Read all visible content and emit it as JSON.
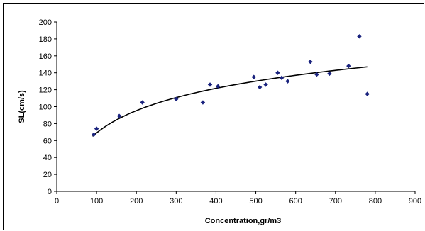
{
  "chart_data": {
    "type": "scatter",
    "title": "",
    "xlabel": "Concentration,gr/m3",
    "ylabel": "SL(cm/s)",
    "xlim": [
      0,
      900
    ],
    "ylim": [
      0,
      200
    ],
    "x_ticks": [
      0,
      100,
      200,
      300,
      400,
      500,
      600,
      700,
      800,
      900
    ],
    "y_ticks": [
      0,
      20,
      40,
      60,
      80,
      100,
      120,
      140,
      160,
      180,
      200
    ],
    "x_tick_labels": [
      "0",
      "100",
      "200",
      "300",
      "400",
      "500",
      "600",
      "700",
      "800",
      "900"
    ],
    "y_tick_labels": [
      "0",
      "20",
      "40",
      "60",
      "80",
      "100",
      "120",
      "140",
      "160",
      "180",
      "200"
    ],
    "grid": false,
    "legend": "none",
    "series": [
      {
        "values": [
          [
            93,
            67
          ],
          [
            100,
            74
          ],
          [
            157,
            89
          ],
          [
            215,
            105
          ],
          [
            300,
            109
          ],
          [
            367,
            105
          ],
          [
            385,
            126
          ],
          [
            405,
            124
          ],
          [
            495,
            135
          ],
          [
            510,
            123
          ],
          [
            525,
            126
          ],
          [
            555,
            140
          ],
          [
            565,
            134
          ],
          [
            580,
            130
          ],
          [
            637,
            153
          ],
          [
            653,
            138
          ],
          [
            685,
            139
          ],
          [
            733,
            148
          ],
          [
            760,
            183
          ],
          [
            780,
            115
          ]
        ],
        "color": "#1a237e"
      }
    ],
    "trendline": {
      "type": "logarithmic",
      "x_range": [
        90,
        780
      ],
      "anchors": [
        [
          90,
          65
        ],
        [
          780,
          147
        ]
      ],
      "color": "#000000"
    }
  }
}
